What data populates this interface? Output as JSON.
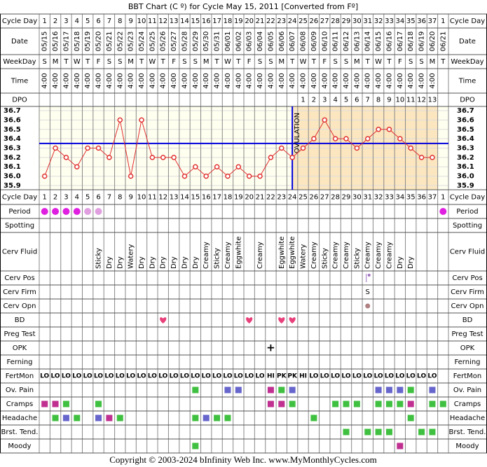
{
  "title": "BBT Chart (C º) for Cycle May 15, 2011  [Converted from Fº]",
  "footer": "Copyright © 2003-2024 bInfinity Web Inc.     www.MyMonthlyCycles.com",
  "row_labels": {
    "cycle_day": "Cycle Day",
    "date": "Date",
    "weekday": "WeekDay",
    "time": "Time",
    "dpo": "DPO",
    "period": "Period",
    "spotting": "Spotting",
    "cerv_fluid": "Cerv Fluid",
    "cerv_pos": "Cerv Pos",
    "cerv_firm": "Cerv Firm",
    "cerv_opn": "Cerv Opn",
    "bd": "BD",
    "preg_test": "Preg Test",
    "opk": "OPK",
    "ferning": "Ferning",
    "fertmon": "FertMon",
    "ov_pain": "Ov. Pain",
    "cramps": "Cramps",
    "headache": "Headache",
    "brst_tend": "Brst. Tend.",
    "moody": "Moody"
  },
  "cycle_days": [
    1,
    2,
    3,
    4,
    5,
    6,
    7,
    8,
    9,
    10,
    11,
    12,
    13,
    14,
    15,
    16,
    17,
    18,
    19,
    20,
    21,
    22,
    23,
    24,
    25,
    26,
    27,
    28,
    29,
    30,
    31,
    32,
    33,
    34,
    35,
    36,
    37,
    1
  ],
  "dates": [
    "05/15",
    "05/16",
    "05/17",
    "05/18",
    "05/19",
    "05/20",
    "05/21",
    "05/22",
    "05/23",
    "05/24",
    "05/25",
    "05/26",
    "05/27",
    "05/28",
    "05/29",
    "05/30",
    "05/31",
    "06/01",
    "06/02",
    "06/03",
    "06/04",
    "06/05",
    "06/06",
    "06/07",
    "06/08",
    "06/09",
    "06/10",
    "06/11",
    "06/12",
    "06/13",
    "06/14",
    "06/15",
    "06/16",
    "06/17",
    "06/18",
    "06/19",
    "06/20",
    "06/21"
  ],
  "weekdays": [
    "S",
    "M",
    "T",
    "W",
    "T",
    "F",
    "S",
    "S",
    "M",
    "T",
    "W",
    "T",
    "F",
    "S",
    "S",
    "M",
    "T",
    "W",
    "T",
    "F",
    "S",
    "S",
    "M",
    "T",
    "W",
    "T",
    "F",
    "S",
    "S",
    "M",
    "T",
    "W",
    "T",
    "F",
    "S",
    "S",
    "M",
    "T"
  ],
  "times": [
    "4:00",
    "4:00",
    "4:00",
    "4:00",
    "4:00",
    "4:00",
    "4:00",
    "4:00",
    "4:00",
    "4:00",
    "4:00",
    "4:00",
    "4:00",
    "4:00",
    "4:00",
    "4:00",
    "4:00",
    "4:00",
    "4:00",
    "4:00",
    "4:00",
    "4:00",
    "4:00",
    "4:00",
    "4:00",
    "4:00",
    "4:00",
    "4:00",
    "4:00",
    "4:00",
    "4:00",
    "4:00",
    "4:00",
    "4:00",
    "4:00",
    "4:00",
    "4:00",
    null
  ],
  "dpo": [
    null,
    null,
    null,
    null,
    null,
    null,
    null,
    null,
    null,
    null,
    null,
    null,
    null,
    null,
    null,
    null,
    null,
    null,
    null,
    null,
    null,
    null,
    null,
    null,
    1,
    2,
    3,
    4,
    5,
    6,
    7,
    8,
    9,
    10,
    11,
    12,
    13,
    null
  ],
  "chart_data": {
    "type": "line",
    "values": [
      36.0,
      36.3,
      36.2,
      36.1,
      36.3,
      36.3,
      36.2,
      36.6,
      36.0,
      36.6,
      36.2,
      36.2,
      36.2,
      36.0,
      36.1,
      36.0,
      36.1,
      36.0,
      36.1,
      36.0,
      36.0,
      36.2,
      36.3,
      36.2,
      36.3,
      36.4,
      36.6,
      36.4,
      36.4,
      36.3,
      36.4,
      36.5,
      36.5,
      36.4,
      36.3,
      36.2,
      36.2,
      null
    ],
    "color": "#e03030",
    "ylim": [
      35.855,
      36.745
    ],
    "yticks": [
      36.7,
      36.6,
      36.5,
      36.4,
      36.3,
      36.2,
      36.1,
      {
        "value": 36,
        "label": "36.0"
      },
      35.9
    ],
    "coverline": 36.35,
    "coverline_color": "#0000dd",
    "ovulation_day": 24,
    "ovulation_label": "OVULATION",
    "grid": true
  },
  "cerv_fluid": [
    null,
    null,
    null,
    null,
    null,
    "Sticky",
    "Dry",
    "Dry",
    "Watery",
    "Dry",
    "Dry",
    "Dry",
    "Dry",
    "Dry",
    "Dry",
    "Creamy",
    "Sticky",
    "Creamy",
    "Eggwhite",
    null,
    "Creamy",
    null,
    "Eggwhite",
    "Eggwhite",
    "Watery",
    "Creamy",
    "Sticky",
    "Creamy",
    "Creamy",
    "Sticky",
    "Creamy",
    "Creamy",
    "Creamy",
    "Dry",
    "Dry",
    null,
    null,
    null
  ],
  "cerv_firm": [
    null,
    null,
    null,
    null,
    null,
    null,
    null,
    null,
    null,
    null,
    null,
    null,
    null,
    null,
    null,
    null,
    null,
    null,
    null,
    null,
    null,
    null,
    null,
    null,
    null,
    null,
    null,
    null,
    null,
    null,
    "S",
    null,
    null,
    null,
    null,
    null,
    null,
    null
  ],
  "opk": [
    null,
    null,
    null,
    null,
    null,
    null,
    null,
    null,
    null,
    null,
    null,
    null,
    null,
    null,
    null,
    null,
    null,
    null,
    null,
    null,
    null,
    "+",
    null,
    null,
    null,
    null,
    null,
    null,
    null,
    null,
    null,
    null,
    null,
    null,
    null,
    null,
    null,
    null
  ],
  "fertmon": [
    "LO",
    "LO",
    "LO",
    "LO",
    "LO",
    "LO",
    "LO",
    "LO",
    "LO",
    "LO",
    "LO",
    "LO",
    "LO",
    "LO",
    "LO",
    "LO",
    "LO",
    "LO",
    "LO",
    "LO",
    "LO",
    "HI",
    "PK",
    "PK",
    "HI",
    "LO",
    "LO",
    "LO",
    "LO",
    "LO",
    "LO",
    "LO",
    "LO",
    "LO",
    "LO",
    "LO",
    "LO",
    null
  ],
  "period": [
    "#e020e0",
    "#e020e0",
    "#e020e0",
    "#e020e0",
    "#e0a0e0",
    "#e0a0e0",
    null,
    null,
    null,
    null,
    null,
    null,
    null,
    null,
    null,
    null,
    null,
    null,
    null,
    null,
    null,
    null,
    null,
    null,
    null,
    null,
    null,
    null,
    null,
    null,
    null,
    null,
    null,
    null,
    null,
    null,
    null,
    "#e020e0"
  ],
  "cerv_pos": [
    null,
    null,
    null,
    null,
    null,
    null,
    null,
    null,
    null,
    null,
    null,
    null,
    null,
    null,
    null,
    null,
    null,
    null,
    null,
    null,
    null,
    null,
    null,
    null,
    null,
    null,
    null,
    null,
    null,
    null,
    "#a070c0",
    null,
    null,
    null,
    null,
    null,
    null,
    null
  ],
  "cerv_opn": [
    null,
    null,
    null,
    null,
    null,
    null,
    null,
    null,
    null,
    null,
    null,
    null,
    null,
    null,
    null,
    null,
    null,
    null,
    null,
    null,
    null,
    null,
    null,
    null,
    null,
    null,
    null,
    null,
    null,
    null,
    "#b08080",
    null,
    null,
    null,
    null,
    null,
    null,
    null
  ],
  "bd": [
    null,
    null,
    null,
    null,
    null,
    null,
    null,
    null,
    null,
    null,
    null,
    "#e8407a",
    null,
    null,
    null,
    null,
    null,
    null,
    null,
    "#e8407a",
    null,
    null,
    "#e8407a",
    "#e8407a",
    null,
    null,
    null,
    null,
    null,
    null,
    null,
    null,
    null,
    null,
    null,
    null,
    null,
    null
  ],
  "ov_pain": [
    null,
    null,
    null,
    null,
    null,
    null,
    null,
    null,
    null,
    null,
    null,
    null,
    null,
    null,
    "#40c040",
    null,
    null,
    "#6666cc",
    "#6666cc",
    null,
    null,
    "#c03090",
    "#40c040",
    "#6666cc",
    null,
    null,
    null,
    null,
    null,
    null,
    null,
    "#6666cc",
    "#6666cc",
    "#6666cc",
    "#40c040",
    null,
    "#6666cc",
    null
  ],
  "cramps": [
    "#c03090",
    "#c03090",
    "#40c040",
    null,
    null,
    "#40c040",
    null,
    null,
    null,
    null,
    null,
    null,
    null,
    null,
    null,
    null,
    null,
    null,
    null,
    null,
    null,
    "#c03090",
    "#c03090",
    "#40c040",
    null,
    null,
    null,
    "#40c040",
    "#40c040",
    "#40c040",
    null,
    "#40c040",
    "#40c040",
    "#40c040",
    "#c03090",
    null,
    "#40c040",
    "#40c040"
  ],
  "headache": [
    null,
    "#40c040",
    "#6666cc",
    "#40c040",
    null,
    "#6666cc",
    "#c03090",
    "#40c040",
    null,
    null,
    null,
    null,
    null,
    null,
    "#40c040",
    "#6666cc",
    "#40c040",
    "#40c040",
    null,
    null,
    null,
    null,
    null,
    null,
    null,
    "#40c040",
    null,
    null,
    null,
    null,
    null,
    null,
    null,
    null,
    "#40c040",
    null,
    null,
    null
  ],
  "brst_tend": [
    null,
    null,
    null,
    null,
    null,
    null,
    null,
    null,
    null,
    null,
    null,
    null,
    null,
    null,
    null,
    null,
    null,
    null,
    null,
    null,
    null,
    null,
    null,
    null,
    null,
    null,
    null,
    null,
    "#40c040",
    null,
    "#40c040",
    "#40c040",
    "#40c040",
    null,
    null,
    "#40c040",
    "#40c040",
    null
  ],
  "moody": [
    null,
    null,
    null,
    null,
    null,
    null,
    null,
    null,
    null,
    null,
    null,
    null,
    null,
    null,
    "#40c040",
    null,
    null,
    null,
    null,
    null,
    null,
    null,
    null,
    null,
    null,
    null,
    null,
    null,
    null,
    null,
    null,
    null,
    null,
    "#c03090",
    null,
    null,
    null,
    null
  ],
  "fertmon_color": "#008000"
}
